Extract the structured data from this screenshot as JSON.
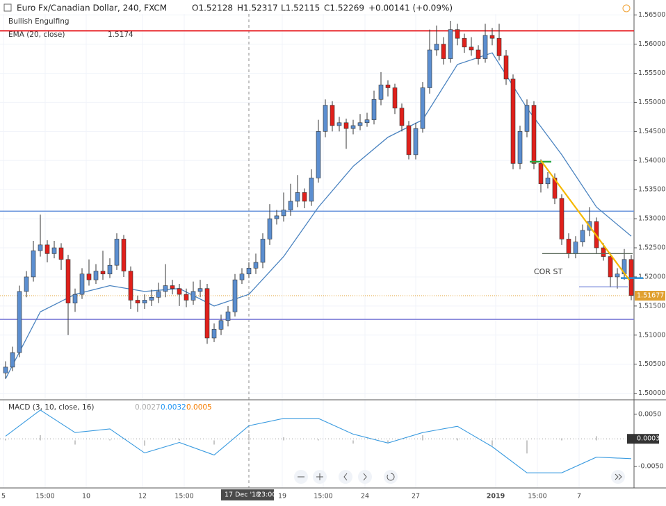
{
  "header": {
    "title": "Euro Fx/Canadian Dollar, 240, FXCM",
    "open": "O1.52128",
    "high": "H1.52317",
    "low": "L1.52115",
    "close": "C1.52269",
    "change": "+0.00141 (+0.09%)",
    "pattern": "Bullish Engulfing"
  },
  "chart_data": {
    "type": "candlestick",
    "up_color": "#5b8ed0",
    "down_color": "#e0201b",
    "ylim": [
      1.499,
      1.5652
    ],
    "yticks": [
      {
        "value": 1.5,
        "label": "1.50000"
      },
      {
        "value": 1.505,
        "label": "1.50500"
      },
      {
        "value": 1.51,
        "label": "1.51000"
      },
      {
        "value": 1.515,
        "label": "1.51500"
      },
      {
        "value": 1.52,
        "label": "1.52000"
      },
      {
        "value": 1.525,
        "label": "1.52500"
      },
      {
        "value": 1.53,
        "label": "1.53000"
      },
      {
        "value": 1.535,
        "label": "1.53500"
      },
      {
        "value": 1.54,
        "label": "1.54000"
      },
      {
        "value": 1.545,
        "label": "1.54500"
      },
      {
        "value": 1.55,
        "label": "1.55000"
      },
      {
        "value": 1.555,
        "label": "1.55500"
      },
      {
        "value": 1.56,
        "label": "1.56000"
      },
      {
        "value": 1.565,
        "label": "1.56500"
      }
    ],
    "candles": [
      [
        1.5035,
        1.5055,
        1.5025,
        1.5045
      ],
      [
        1.5045,
        1.508,
        1.5038,
        1.507
      ],
      [
        1.507,
        1.5185,
        1.5062,
        1.5175
      ],
      [
        1.5175,
        1.521,
        1.5165,
        1.52
      ],
      [
        1.52,
        1.5262,
        1.5192,
        1.5245
      ],
      [
        1.5245,
        1.5307,
        1.5235,
        1.5255
      ],
      [
        1.5255,
        1.5263,
        1.5225,
        1.524
      ],
      [
        1.524,
        1.5262,
        1.5232,
        1.525
      ],
      [
        1.525,
        1.5258,
        1.5212,
        1.523
      ],
      [
        1.523,
        1.5238,
        1.51,
        1.5155
      ],
      [
        1.5155,
        1.518,
        1.514,
        1.517
      ],
      [
        1.517,
        1.5215,
        1.5162,
        1.5205
      ],
      [
        1.5205,
        1.523,
        1.5185,
        1.5195
      ],
      [
        1.5195,
        1.5222,
        1.5188,
        1.521
      ],
      [
        1.521,
        1.5245,
        1.5195,
        1.5205
      ],
      [
        1.5205,
        1.5232,
        1.5198,
        1.522
      ],
      [
        1.522,
        1.5275,
        1.5212,
        1.5265
      ],
      [
        1.5265,
        1.5272,
        1.52,
        1.521
      ],
      [
        1.521,
        1.5218,
        1.5145,
        1.516
      ],
      [
        1.516,
        1.5168,
        1.514,
        1.5155
      ],
      [
        1.5155,
        1.517,
        1.5145,
        1.516
      ],
      [
        1.516,
        1.5178,
        1.515,
        1.5165
      ],
      [
        1.5165,
        1.519,
        1.5155,
        1.5175
      ],
      [
        1.5175,
        1.5222,
        1.5165,
        1.5185
      ],
      [
        1.5185,
        1.5195,
        1.517,
        1.518
      ],
      [
        1.518,
        1.5188,
        1.515,
        1.517
      ],
      [
        1.517,
        1.518,
        1.5148,
        1.516
      ],
      [
        1.516,
        1.5192,
        1.5152,
        1.5175
      ],
      [
        1.5175,
        1.5195,
        1.5165,
        1.518
      ],
      [
        1.518,
        1.5188,
        1.5085,
        1.5095
      ],
      [
        1.5095,
        1.512,
        1.5088,
        1.511
      ],
      [
        1.511,
        1.5135,
        1.51,
        1.5125
      ],
      [
        1.5125,
        1.515,
        1.5115,
        1.514
      ],
      [
        1.514,
        1.5205,
        1.5132,
        1.5195
      ],
      [
        1.5195,
        1.5215,
        1.5188,
        1.5205
      ],
      [
        1.5205,
        1.5225,
        1.5198,
        1.5215
      ],
      [
        1.5215,
        1.524,
        1.5205,
        1.5225
      ],
      [
        1.5225,
        1.5275,
        1.5215,
        1.5265
      ],
      [
        1.5265,
        1.5325,
        1.5255,
        1.53
      ],
      [
        1.53,
        1.5315,
        1.529,
        1.5305
      ],
      [
        1.5305,
        1.5345,
        1.5295,
        1.5315
      ],
      [
        1.5315,
        1.536,
        1.5305,
        1.533
      ],
      [
        1.533,
        1.5375,
        1.532,
        1.5345
      ],
      [
        1.5345,
        1.5352,
        1.5318,
        1.533
      ],
      [
        1.533,
        1.5385,
        1.5322,
        1.537
      ],
      [
        1.537,
        1.547,
        1.5362,
        1.545
      ],
      [
        1.545,
        1.5505,
        1.544,
        1.5495
      ],
      [
        1.5495,
        1.5502,
        1.545,
        1.546
      ],
      [
        1.546,
        1.5475,
        1.545,
        1.5465
      ],
      [
        1.5465,
        1.5472,
        1.542,
        1.5455
      ],
      [
        1.5455,
        1.547,
        1.5445,
        1.546
      ],
      [
        1.546,
        1.548,
        1.5452,
        1.5465
      ],
      [
        1.5465,
        1.5482,
        1.5458,
        1.547
      ],
      [
        1.547,
        1.552,
        1.5462,
        1.5505
      ],
      [
        1.5505,
        1.5552,
        1.5495,
        1.553
      ],
      [
        1.553,
        1.5538,
        1.551,
        1.5525
      ],
      [
        1.5525,
        1.5532,
        1.548,
        1.549
      ],
      [
        1.549,
        1.5498,
        1.545,
        1.546
      ],
      [
        1.546,
        1.5468,
        1.5402,
        1.541
      ],
      [
        1.541,
        1.5465,
        1.5402,
        1.5455
      ],
      [
        1.5455,
        1.5535,
        1.5448,
        1.5525
      ],
      [
        1.5525,
        1.5625,
        1.5515,
        1.559
      ],
      [
        1.559,
        1.5632,
        1.558,
        1.56
      ],
      [
        1.56,
        1.5612,
        1.5565,
        1.5575
      ],
      [
        1.5575,
        1.564,
        1.5568,
        1.5625
      ],
      [
        1.5625,
        1.5635,
        1.5598,
        1.561
      ],
      [
        1.561,
        1.5618,
        1.5585,
        1.5595
      ],
      [
        1.5595,
        1.5612,
        1.558,
        1.559
      ],
      [
        1.559,
        1.5598,
        1.5565,
        1.5575
      ],
      [
        1.5575,
        1.5635,
        1.5568,
        1.5615
      ],
      [
        1.5615,
        1.5628,
        1.5598,
        1.561
      ],
      [
        1.561,
        1.5635,
        1.5572,
        1.558
      ],
      [
        1.558,
        1.559,
        1.553,
        1.554
      ],
      [
        1.554,
        1.5548,
        1.5385,
        1.5395
      ],
      [
        1.5395,
        1.546,
        1.5385,
        1.545
      ],
      [
        1.545,
        1.5505,
        1.544,
        1.5495
      ],
      [
        1.5495,
        1.5502,
        1.5385,
        1.5395
      ],
      [
        1.5395,
        1.5402,
        1.5345,
        1.536
      ],
      [
        1.536,
        1.538,
        1.5352,
        1.537
      ],
      [
        1.537,
        1.5378,
        1.5325,
        1.5335
      ],
      [
        1.5335,
        1.5342,
        1.5255,
        1.5265
      ],
      [
        1.5265,
        1.5275,
        1.5232,
        1.524
      ],
      [
        1.524,
        1.527,
        1.5232,
        1.526
      ],
      [
        1.526,
        1.529,
        1.5252,
        1.528
      ],
      [
        1.528,
        1.532,
        1.527,
        1.5295
      ],
      [
        1.5295,
        1.5302,
        1.524,
        1.525
      ],
      [
        1.525,
        1.5258,
        1.5228,
        1.5235
      ],
      [
        1.5235,
        1.5242,
        1.5182,
        1.52
      ],
      [
        1.52,
        1.5215,
        1.518,
        1.5205
      ],
      [
        1.5205,
        1.5248,
        1.5195,
        1.523
      ],
      [
        1.523,
        1.5238,
        1.516,
        1.5168
      ]
    ],
    "ema": {
      "name": "EMA (20, close)",
      "value_label": "1.5174",
      "color": "#4a83c0",
      "values": [
        1.5025,
        1.514,
        1.517,
        1.5185,
        1.5175,
        1.518,
        1.515,
        1.517,
        1.5235,
        1.532,
        1.539,
        1.544,
        1.547,
        1.5565,
        1.5585,
        1.549,
        1.541,
        1.532,
        1.527
      ]
    },
    "lines": [
      {
        "value": 1.5623,
        "color": "#e8252a"
      },
      {
        "value": 1.5313,
        "color": "#6b95dd"
      },
      {
        "value": 1.5127,
        "color": "#7a7ad6"
      }
    ],
    "drawings": [
      {
        "value": 1.5398,
        "color": "#27a844"
      },
      {
        "value": 1.524,
        "color": "#5a6a5a"
      },
      {
        "value": 1.5183,
        "color": "#6b7fd6"
      },
      {
        "value": 1.5198,
        "color": "#2a8fd8"
      }
    ],
    "trend": {
      "from": 1.54,
      "to": 1.5195,
      "color": "#f5b800"
    },
    "annotation": "COR ST",
    "price_label": {
      "value": 1.51677,
      "label": "1.51677"
    },
    "crosshair": {
      "date": "17 Dec '18",
      "time": "23:00"
    },
    "xlabels": [
      "5",
      "15:00",
      "10",
      "12",
      "15:00",
      "19",
      "15:00",
      "24",
      "27",
      "2019",
      "15:00",
      "7"
    ]
  },
  "macd": {
    "name": "MACD (3, 10, close, 16)",
    "readings": [
      {
        "label": "0.0027",
        "color": "#aaaaaa"
      },
      {
        "label": "0.0032",
        "color": "#2196f3"
      },
      {
        "label": "0.0005",
        "color": "#f57c00"
      }
    ],
    "ylim": [
      -0.0087,
      0.0075
    ],
    "yticks": [
      {
        "value": 0.005,
        "label": "0.0050"
      },
      {
        "value": -0.005,
        "label": "-0.0050"
      }
    ],
    "current": {
      "value": 0.0003,
      "label": "0.0003"
    },
    "line": [
      0.0008,
      0.0058,
      0.0015,
      0.0022,
      -0.0024,
      -0.0004,
      -0.0028,
      0.0028,
      0.0042,
      0.0042,
      0.0012,
      -0.0005,
      0.0015,
      0.0027,
      -0.0012,
      -0.0062,
      -0.0062,
      -0.0032,
      -0.0035
    ],
    "histogram": [
      0.0003,
      0.001,
      -0.0008,
      0.0002,
      -0.001,
      0.0003,
      -0.0008,
      0.0012,
      0.0006,
      0.0002,
      -0.0006,
      -0.0004,
      0.001,
      0.0004,
      -0.001,
      -0.0025,
      0.0004,
      0.0008,
      -0.0002
    ]
  }
}
